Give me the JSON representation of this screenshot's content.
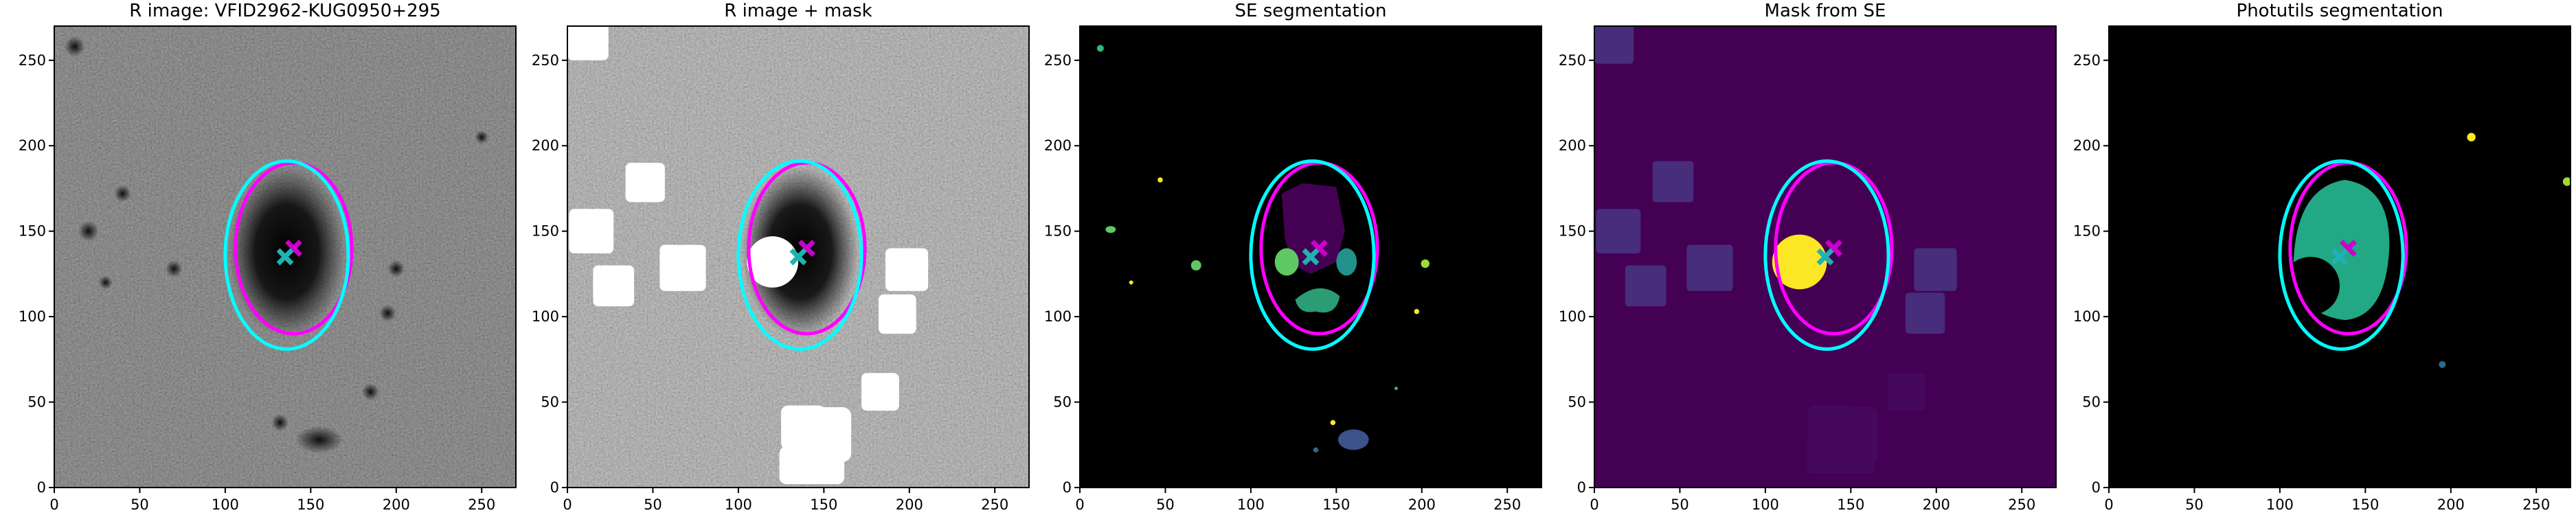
{
  "chart_data": [
    {
      "type": "image",
      "title": "R image: VFID2962-KUG0950+295",
      "xlim": [
        0,
        270
      ],
      "ylim": [
        0,
        270
      ],
      "xticks": [
        0,
        50,
        100,
        150,
        200,
        250
      ],
      "yticks": [
        0,
        50,
        100,
        150,
        200,
        250
      ],
      "ellipses": [
        {
          "cx": 140,
          "cy": 140,
          "width": 68,
          "height": 100,
          "color": "#ff00ff"
        },
        {
          "cx": 136,
          "cy": 136,
          "width": 72,
          "height": 110,
          "color": "#00ffff"
        }
      ],
      "markers": [
        {
          "x": 140,
          "y": 140,
          "color": "#cc00cc"
        },
        {
          "x": 135,
          "y": 135,
          "color": "#20b2b2"
        }
      ]
    },
    {
      "type": "image",
      "title": "R image + mask",
      "xlim": [
        0,
        270
      ],
      "ylim": [
        0,
        270
      ],
      "xticks": [
        0,
        50,
        100,
        150,
        200,
        250
      ],
      "yticks": [
        0,
        50,
        100,
        150,
        200,
        250
      ],
      "ellipses": [
        {
          "cx": 140,
          "cy": 140,
          "width": 68,
          "height": 100,
          "color": "#ff00ff"
        },
        {
          "cx": 136,
          "cy": 136,
          "width": 72,
          "height": 110,
          "color": "#00ffff"
        }
      ],
      "markers": [
        {
          "x": 140,
          "y": 140,
          "color": "#cc00cc"
        },
        {
          "x": 135,
          "y": 135,
          "color": "#20b2b2"
        }
      ]
    },
    {
      "type": "image",
      "title": "SE segmentation",
      "xlim": [
        0,
        270
      ],
      "ylim": [
        0,
        270
      ],
      "xticks": [
        0,
        50,
        100,
        150,
        200,
        250
      ],
      "yticks": [
        0,
        50,
        100,
        150,
        200,
        250
      ],
      "ellipses": [
        {
          "cx": 140,
          "cy": 140,
          "width": 68,
          "height": 100,
          "color": "#ff00ff"
        },
        {
          "cx": 136,
          "cy": 136,
          "width": 72,
          "height": 110,
          "color": "#00ffff"
        }
      ],
      "markers": [
        {
          "x": 140,
          "y": 140,
          "color": "#cc00cc"
        },
        {
          "x": 135,
          "y": 135,
          "color": "#20b2b2"
        }
      ]
    },
    {
      "type": "image",
      "title": "Mask from SE",
      "xlim": [
        0,
        270
      ],
      "ylim": [
        0,
        270
      ],
      "xticks": [
        0,
        50,
        100,
        150,
        200,
        250
      ],
      "yticks": [
        0,
        50,
        100,
        150,
        200,
        250
      ],
      "ellipses": [
        {
          "cx": 140,
          "cy": 140,
          "width": 68,
          "height": 100,
          "color": "#ff00ff"
        },
        {
          "cx": 136,
          "cy": 136,
          "width": 72,
          "height": 110,
          "color": "#00ffff"
        }
      ],
      "markers": [
        {
          "x": 140,
          "y": 140,
          "color": "#cc00cc"
        },
        {
          "x": 135,
          "y": 135,
          "color": "#20b2b2"
        }
      ]
    },
    {
      "type": "image",
      "title": "Photutils segmentation",
      "xlim": [
        0,
        270
      ],
      "ylim": [
        0,
        270
      ],
      "xticks": [
        0,
        50,
        100,
        150,
        200,
        250
      ],
      "yticks": [
        0,
        50,
        100,
        150,
        200,
        250
      ],
      "ellipses": [
        {
          "cx": 140,
          "cy": 140,
          "width": 68,
          "height": 100,
          "color": "#ff00ff"
        },
        {
          "cx": 136,
          "cy": 136,
          "width": 72,
          "height": 110,
          "color": "#00ffff"
        }
      ],
      "markers": [
        {
          "x": 140,
          "y": 140,
          "color": "#cc00cc"
        },
        {
          "x": 135,
          "y": 135,
          "color": "#20b2b2"
        }
      ]
    }
  ]
}
